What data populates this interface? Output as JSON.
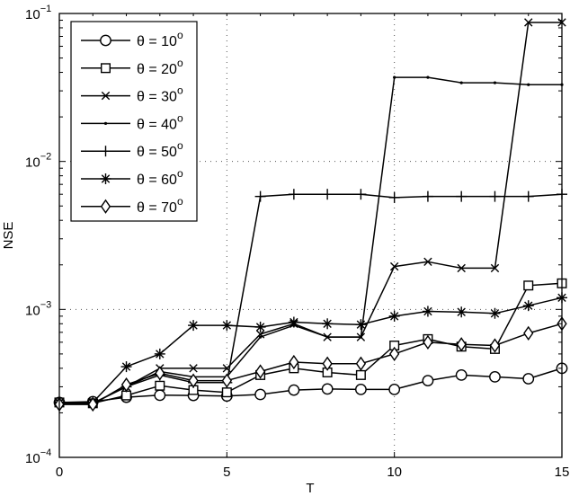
{
  "chart_data": {
    "type": "line",
    "title": "",
    "xlabel": "T",
    "ylabel": "NSE",
    "xscale": "linear",
    "yscale": "log",
    "xlim": [
      0,
      15
    ],
    "ylim": [
      0.0001,
      0.1
    ],
    "grid": true,
    "legend_position": "upper left",
    "x_ticks": [
      0,
      5,
      10,
      15
    ],
    "x_tick_labels": [
      "0",
      "5",
      "10",
      "15"
    ],
    "y_ticks": [
      0.0001,
      0.001,
      0.01,
      0.1
    ],
    "y_tick_labels": [
      {
        "base": "10",
        "exp": "−4"
      },
      {
        "base": "10",
        "exp": "−3"
      },
      {
        "base": "10",
        "exp": "−2"
      },
      {
        "base": "10",
        "exp": "−1"
      }
    ],
    "x": [
      0,
      1,
      2,
      3,
      4,
      5,
      6,
      7,
      8,
      9,
      10,
      11,
      12,
      13,
      14,
      15
    ],
    "series": [
      {
        "name": "θ = 10°",
        "label": "θ = 10",
        "sup": "o",
        "marker": "circle",
        "values": [
          0.000235,
          0.000238,
          0.000255,
          0.000263,
          0.000262,
          0.00026,
          0.000266,
          0.000285,
          0.00029,
          0.000288,
          0.000288,
          0.00033,
          0.00036,
          0.00035,
          0.00034,
          0.0004
        ]
      },
      {
        "name": "θ = 20°",
        "label": "θ = 20",
        "sup": "o",
        "marker": "square",
        "values": [
          0.000235,
          0.000232,
          0.000262,
          0.000305,
          0.000285,
          0.000275,
          0.00036,
          0.0004,
          0.000375,
          0.00036,
          0.00057,
          0.00063,
          0.00056,
          0.00054,
          0.00145,
          0.0015
        ]
      },
      {
        "name": "θ = 30°",
        "label": "θ = 30",
        "sup": "o",
        "marker": "x",
        "values": [
          0.000232,
          0.000232,
          0.0003,
          0.0004,
          0.0004,
          0.0004,
          0.00068,
          0.0008,
          0.00065,
          0.00065,
          0.00195,
          0.0021,
          0.0019,
          0.0019,
          0.087,
          0.087
        ]
      },
      {
        "name": "θ = 40°",
        "label": "θ = 40",
        "sup": "o",
        "marker": "point",
        "values": [
          0.000232,
          0.000232,
          0.0003,
          0.00038,
          0.00035,
          0.00035,
          0.00065,
          0.00078,
          0.00065,
          0.00065,
          0.037,
          0.037,
          0.034,
          0.034,
          0.033,
          0.033
        ]
      },
      {
        "name": "θ = 50°",
        "label": "θ = 50",
        "sup": "o",
        "marker": "plus",
        "values": [
          0.000232,
          0.000232,
          0.0003,
          0.00036,
          0.00032,
          0.00032,
          0.0058,
          0.006,
          0.006,
          0.006,
          0.0057,
          0.0058,
          0.0058,
          0.0058,
          0.0058,
          0.006
        ]
      },
      {
        "name": "θ = 60°",
        "label": "θ = 60",
        "sup": "o",
        "marker": "star",
        "values": [
          0.000235,
          0.000235,
          0.00041,
          0.0005,
          0.00078,
          0.00078,
          0.00076,
          0.00082,
          0.0008,
          0.00079,
          0.0009,
          0.00097,
          0.00096,
          0.00094,
          0.00106,
          0.0012
        ]
      },
      {
        "name": "θ = 70°",
        "label": "θ = 70",
        "sup": "o",
        "marker": "diamond",
        "values": [
          0.000228,
          0.000228,
          0.00031,
          0.00037,
          0.00033,
          0.00033,
          0.00038,
          0.00044,
          0.00043,
          0.00043,
          0.0005,
          0.0006,
          0.00058,
          0.00057,
          0.00069,
          0.0008
        ]
      }
    ]
  }
}
